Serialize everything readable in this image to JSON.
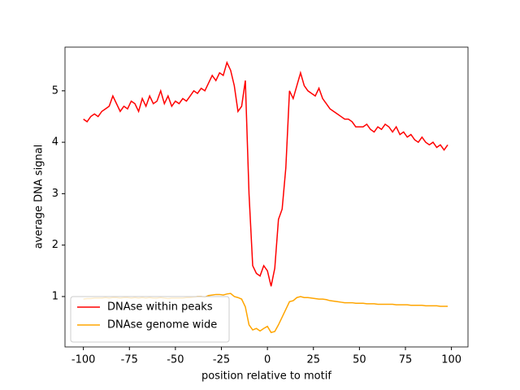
{
  "chart_data": {
    "type": "line",
    "xlabel": "position relative to motif",
    "ylabel": "average DNA signal",
    "x": [
      -100,
      -98,
      -96,
      -94,
      -92,
      -90,
      -88,
      -86,
      -84,
      -82,
      -80,
      -78,
      -76,
      -74,
      -72,
      -70,
      -68,
      -66,
      -64,
      -62,
      -60,
      -58,
      -56,
      -54,
      -52,
      -50,
      -48,
      -46,
      -44,
      -42,
      -40,
      -38,
      -36,
      -34,
      -32,
      -30,
      -28,
      -26,
      -24,
      -22,
      -20,
      -18,
      -16,
      -14,
      -12,
      -10,
      -8,
      -6,
      -4,
      -2,
      0,
      2,
      4,
      6,
      8,
      10,
      12,
      14,
      16,
      18,
      20,
      22,
      24,
      26,
      28,
      30,
      32,
      34,
      36,
      38,
      40,
      42,
      44,
      46,
      48,
      50,
      52,
      54,
      56,
      58,
      60,
      62,
      64,
      66,
      68,
      70,
      72,
      74,
      76,
      78,
      80,
      82,
      84,
      86,
      88,
      90,
      92,
      94,
      96,
      98
    ],
    "series": [
      {
        "name": "DNAse within peaks",
        "color": "#ff0000",
        "values": [
          4.45,
          4.4,
          4.5,
          4.55,
          4.5,
          4.6,
          4.65,
          4.7,
          4.9,
          4.75,
          4.6,
          4.7,
          4.65,
          4.8,
          4.75,
          4.6,
          4.85,
          4.7,
          4.9,
          4.75,
          4.8,
          5.0,
          4.75,
          4.9,
          4.7,
          4.8,
          4.75,
          4.85,
          4.8,
          4.9,
          5.0,
          4.95,
          5.05,
          5.0,
          5.15,
          5.3,
          5.2,
          5.35,
          5.3,
          5.55,
          5.4,
          5.1,
          4.6,
          4.7,
          5.2,
          3.0,
          1.6,
          1.45,
          1.4,
          1.6,
          1.5,
          1.2,
          1.55,
          2.5,
          2.7,
          3.5,
          5.0,
          4.85,
          5.1,
          5.35,
          5.1,
          5.0,
          4.95,
          4.9,
          5.05,
          4.85,
          4.75,
          4.65,
          4.6,
          4.55,
          4.5,
          4.45,
          4.45,
          4.4,
          4.3,
          4.3,
          4.3,
          4.35,
          4.25,
          4.2,
          4.3,
          4.25,
          4.35,
          4.3,
          4.2,
          4.3,
          4.15,
          4.2,
          4.1,
          4.15,
          4.05,
          4.0,
          4.1,
          4.0,
          3.95,
          4.0,
          3.9,
          3.95,
          3.85,
          3.95
        ]
      },
      {
        "name": "DNAse genome wide",
        "color": "#ffa500",
        "values": [
          0.95,
          0.96,
          0.96,
          0.97,
          0.97,
          0.97,
          0.98,
          0.97,
          0.98,
          0.98,
          0.97,
          0.98,
          0.98,
          0.97,
          0.98,
          0.97,
          0.98,
          0.97,
          0.98,
          0.97,
          0.97,
          0.98,
          0.97,
          0.96,
          0.97,
          0.97,
          0.97,
          0.97,
          0.98,
          0.98,
          0.99,
          1.0,
          1.0,
          0.99,
          1.02,
          1.03,
          1.04,
          1.04,
          1.03,
          1.05,
          1.06,
          1.0,
          0.98,
          0.95,
          0.8,
          0.45,
          0.35,
          0.38,
          0.33,
          0.38,
          0.42,
          0.3,
          0.32,
          0.45,
          0.6,
          0.75,
          0.9,
          0.92,
          0.98,
          1.0,
          0.98,
          0.98,
          0.97,
          0.96,
          0.95,
          0.95,
          0.94,
          0.92,
          0.91,
          0.9,
          0.89,
          0.88,
          0.88,
          0.88,
          0.87,
          0.87,
          0.87,
          0.86,
          0.86,
          0.86,
          0.85,
          0.85,
          0.85,
          0.85,
          0.85,
          0.84,
          0.84,
          0.84,
          0.84,
          0.83,
          0.83,
          0.83,
          0.83,
          0.82,
          0.82,
          0.82,
          0.82,
          0.81,
          0.81,
          0.81
        ]
      }
    ],
    "xlim": [
      -110,
      109
    ],
    "ylim": [
      0.02,
      5.85
    ],
    "xticks": [
      -100,
      -75,
      -50,
      -25,
      0,
      25,
      50,
      75,
      100
    ],
    "yticks": [
      1,
      2,
      3,
      4,
      5
    ],
    "grid": false,
    "legend": "lower left"
  }
}
